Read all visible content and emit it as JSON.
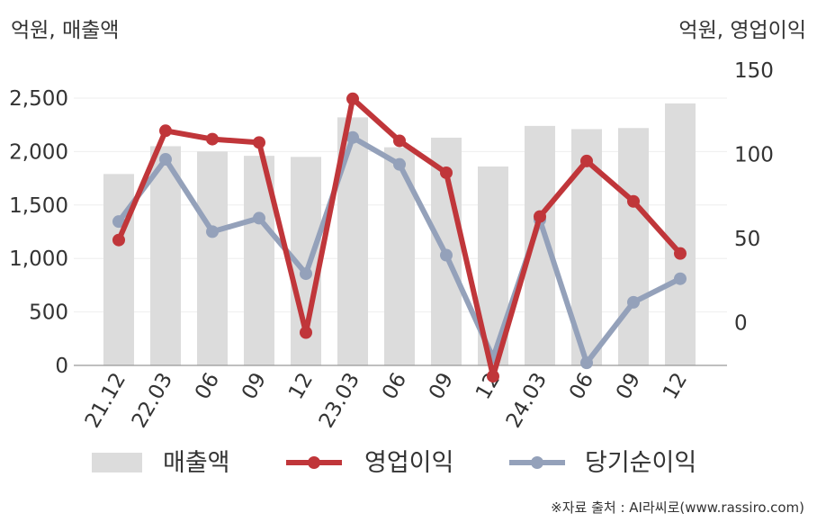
{
  "axis_titles": {
    "left": "억원, 매출액",
    "right": "억원, 영업이익"
  },
  "source": "※자료 출처 : AI라씨로(www.rassiro.com)",
  "colors": {
    "sales": "#dcdcdc",
    "operating_profit": "#c0363a",
    "net_income": "#94a1ba",
    "axis": "#999999",
    "text": "#333333"
  },
  "chart_data": {
    "type": "bar",
    "categories": [
      "21.12",
      "22.03",
      "06",
      "09",
      "12",
      "23.03",
      "06",
      "09",
      "12",
      "24.03",
      "06",
      "09",
      "12"
    ],
    "series": [
      {
        "name": "매출액",
        "type": "bar",
        "axis": "left",
        "values": [
          1790,
          2050,
          2000,
          1960,
          1950,
          2320,
          2040,
          2130,
          1860,
          2240,
          2210,
          2220,
          2450
        ]
      },
      {
        "name": "영업이익",
        "type": "line",
        "axis": "right",
        "values": [
          49,
          114,
          109,
          107,
          -6,
          133,
          108,
          89,
          -32,
          63,
          96,
          72,
          41
        ]
      },
      {
        "name": "당기순이익",
        "type": "line",
        "axis": "right",
        "values": [
          60,
          97,
          54,
          62,
          29,
          110,
          94,
          40,
          -21,
          61,
          -24,
          12,
          26
        ]
      }
    ],
    "y_left": {
      "min": 0,
      "max": 2500,
      "ticks": [
        "0",
        "500",
        "1,000",
        "1,500",
        "2,000",
        "2,500"
      ]
    },
    "y_right": {
      "min": -25,
      "max": 150,
      "ticks": [
        "0",
        "50",
        "100",
        "150"
      ]
    },
    "legend": [
      "매출액",
      "영업이익",
      "당기순이익"
    ],
    "legend_position": "bottom",
    "grid": true
  }
}
